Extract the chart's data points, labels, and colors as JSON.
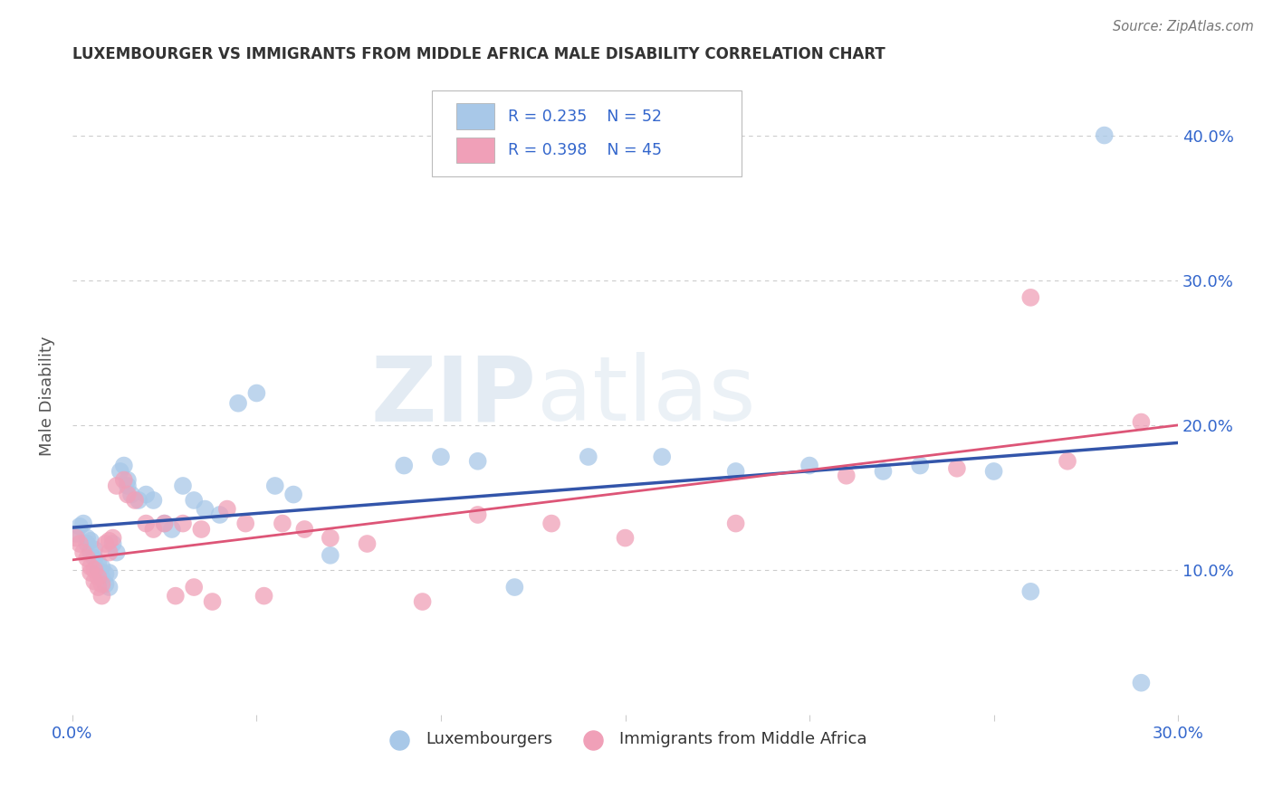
{
  "title": "LUXEMBOURGER VS IMMIGRANTS FROM MIDDLE AFRICA MALE DISABILITY CORRELATION CHART",
  "source": "Source: ZipAtlas.com",
  "ylabel": "Male Disability",
  "xlim": [
    0.0,
    0.3
  ],
  "ylim": [
    0.0,
    0.44
  ],
  "blue_line_color": "#3355aa",
  "pink_line_color": "#dd5577",
  "blue_color": "#a8c8e8",
  "pink_color": "#f0a0b8",
  "title_color": "#333333",
  "source_color": "#777777",
  "legend_text_color": "#3366cc",
  "grid_color": "#cccccc",
  "background_color": "#ffffff",
  "watermark_zip": "ZIP",
  "watermark_atlas": "atlas",
  "blue_x": [
    0.001,
    0.002,
    0.003,
    0.004,
    0.004,
    0.005,
    0.005,
    0.006,
    0.006,
    0.007,
    0.007,
    0.008,
    0.008,
    0.009,
    0.009,
    0.01,
    0.01,
    0.011,
    0.012,
    0.013,
    0.014,
    0.015,
    0.015,
    0.016,
    0.018,
    0.02,
    0.022,
    0.025,
    0.027,
    0.03,
    0.033,
    0.036,
    0.04,
    0.045,
    0.05,
    0.055,
    0.06,
    0.07,
    0.09,
    0.1,
    0.11,
    0.12,
    0.14,
    0.16,
    0.18,
    0.2,
    0.22,
    0.23,
    0.25,
    0.26,
    0.28,
    0.29
  ],
  "blue_y": [
    0.125,
    0.13,
    0.132,
    0.118,
    0.122,
    0.112,
    0.12,
    0.108,
    0.114,
    0.1,
    0.105,
    0.095,
    0.102,
    0.09,
    0.097,
    0.088,
    0.098,
    0.118,
    0.112,
    0.168,
    0.172,
    0.158,
    0.162,
    0.152,
    0.148,
    0.152,
    0.148,
    0.132,
    0.128,
    0.158,
    0.148,
    0.142,
    0.138,
    0.215,
    0.222,
    0.158,
    0.152,
    0.11,
    0.172,
    0.178,
    0.175,
    0.088,
    0.178,
    0.178,
    0.168,
    0.172,
    0.168,
    0.172,
    0.168,
    0.085,
    0.4,
    0.022
  ],
  "pink_x": [
    0.001,
    0.002,
    0.003,
    0.004,
    0.005,
    0.005,
    0.006,
    0.006,
    0.007,
    0.007,
    0.008,
    0.008,
    0.009,
    0.01,
    0.01,
    0.011,
    0.012,
    0.014,
    0.015,
    0.017,
    0.02,
    0.022,
    0.025,
    0.028,
    0.03,
    0.033,
    0.035,
    0.038,
    0.042,
    0.047,
    0.052,
    0.057,
    0.063,
    0.07,
    0.08,
    0.095,
    0.11,
    0.13,
    0.15,
    0.18,
    0.21,
    0.24,
    0.26,
    0.27,
    0.29
  ],
  "pink_y": [
    0.122,
    0.118,
    0.112,
    0.108,
    0.098,
    0.102,
    0.092,
    0.1,
    0.088,
    0.095,
    0.082,
    0.09,
    0.118,
    0.112,
    0.12,
    0.122,
    0.158,
    0.162,
    0.152,
    0.148,
    0.132,
    0.128,
    0.132,
    0.082,
    0.132,
    0.088,
    0.128,
    0.078,
    0.142,
    0.132,
    0.082,
    0.132,
    0.128,
    0.122,
    0.118,
    0.078,
    0.138,
    0.132,
    0.122,
    0.132,
    0.165,
    0.17,
    0.288,
    0.175,
    0.202
  ]
}
